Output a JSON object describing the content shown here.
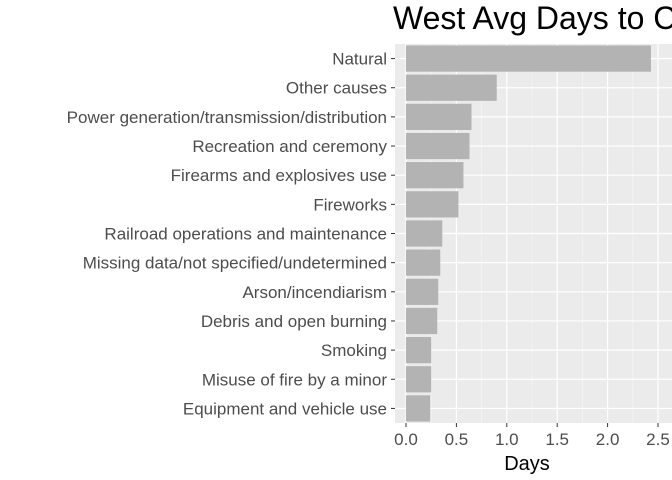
{
  "chart_data": {
    "type": "bar",
    "orientation": "horizontal",
    "title": "West Avg Days to C",
    "xlabel": "Days",
    "ylabel": "",
    "xlim": [
      0,
      2.5
    ],
    "xticks": [
      "0.0",
      "0.5",
      "1.0",
      "1.5",
      "2.0",
      "2.5"
    ],
    "grid": true,
    "bar_color": "#b3b3b3",
    "panel_color": "#ebebeb",
    "categories": [
      "Natural",
      "Other causes",
      "Power generation/transmission/distribution",
      "Recreation and ceremony",
      "Firearms and explosives use",
      "Fireworks",
      "Railroad operations and maintenance",
      "Missing data/not specified/undetermined",
      "Arson/incendiarism",
      "Debris and open burning",
      "Smoking",
      "Misuse of fire by a minor",
      "Equipment and vehicle use"
    ],
    "values": [
      2.43,
      0.9,
      0.65,
      0.63,
      0.57,
      0.52,
      0.36,
      0.34,
      0.32,
      0.31,
      0.25,
      0.25,
      0.24
    ]
  }
}
